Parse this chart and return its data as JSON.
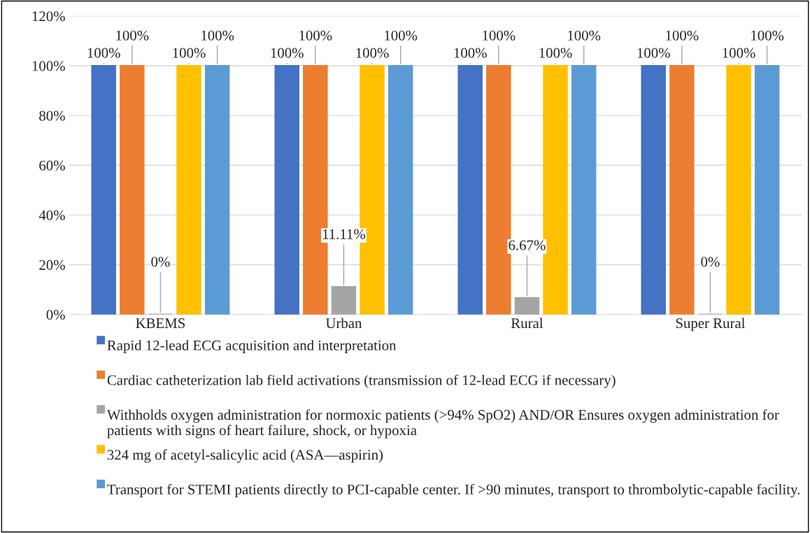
{
  "chart_data": {
    "type": "bar",
    "categories": [
      "KBEMS",
      "Urban",
      "Rural",
      "Super Rural"
    ],
    "series": [
      {
        "name": "Rapid 12-lead ECG acquisition and interpretation",
        "color": "#4472c4",
        "values": [
          100,
          100,
          100,
          100
        ],
        "value_labels": [
          "100%",
          "100%",
          "100%",
          "100%"
        ]
      },
      {
        "name": "Cardiac catheterization lab field activations (transmission of 12-lead ECG if necessary)",
        "color": "#ed7d31",
        "values": [
          100,
          100,
          100,
          100
        ],
        "value_labels": [
          "100%",
          "100%",
          "100%",
          "100%"
        ]
      },
      {
        "name": "Withholds oxygen administration for normoxic patients (>94% SpO2) AND/OR Ensures oxygen administration for patients with signs of heart failure, shock, or hypoxia",
        "color": "#a5a5a5",
        "values": [
          0,
          11.11,
          6.67,
          0
        ],
        "value_labels": [
          "0%",
          "11.11%",
          "6.67%",
          "0%"
        ]
      },
      {
        "name": "324 mg of acetyl-salicylic acid (ASA—aspirin)",
        "color": "#ffc000",
        "values": [
          100,
          100,
          100,
          100
        ],
        "value_labels": [
          "100%",
          "100%",
          "100%",
          "100%"
        ]
      },
      {
        "name": "Transport for STEMI patients directly to PCI-capable center. If >90 minutes, transport to thrombolytic-capable facility.",
        "color": "#5b9bd5",
        "values": [
          100,
          100,
          100,
          100
        ],
        "value_labels": [
          "100%",
          "100%",
          "100%",
          "100%"
        ]
      }
    ],
    "ylim": [
      0,
      120
    ],
    "yticks": [
      {
        "value": 0,
        "label": "0%"
      },
      {
        "value": 20,
        "label": "20%"
      },
      {
        "value": 40,
        "label": "40%"
      },
      {
        "value": 60,
        "label": "60%"
      },
      {
        "value": 80,
        "label": "80%"
      },
      {
        "value": 100,
        "label": "100%"
      },
      {
        "value": 120,
        "label": "120%"
      }
    ],
    "grid": "y",
    "legend": "bottom"
  }
}
